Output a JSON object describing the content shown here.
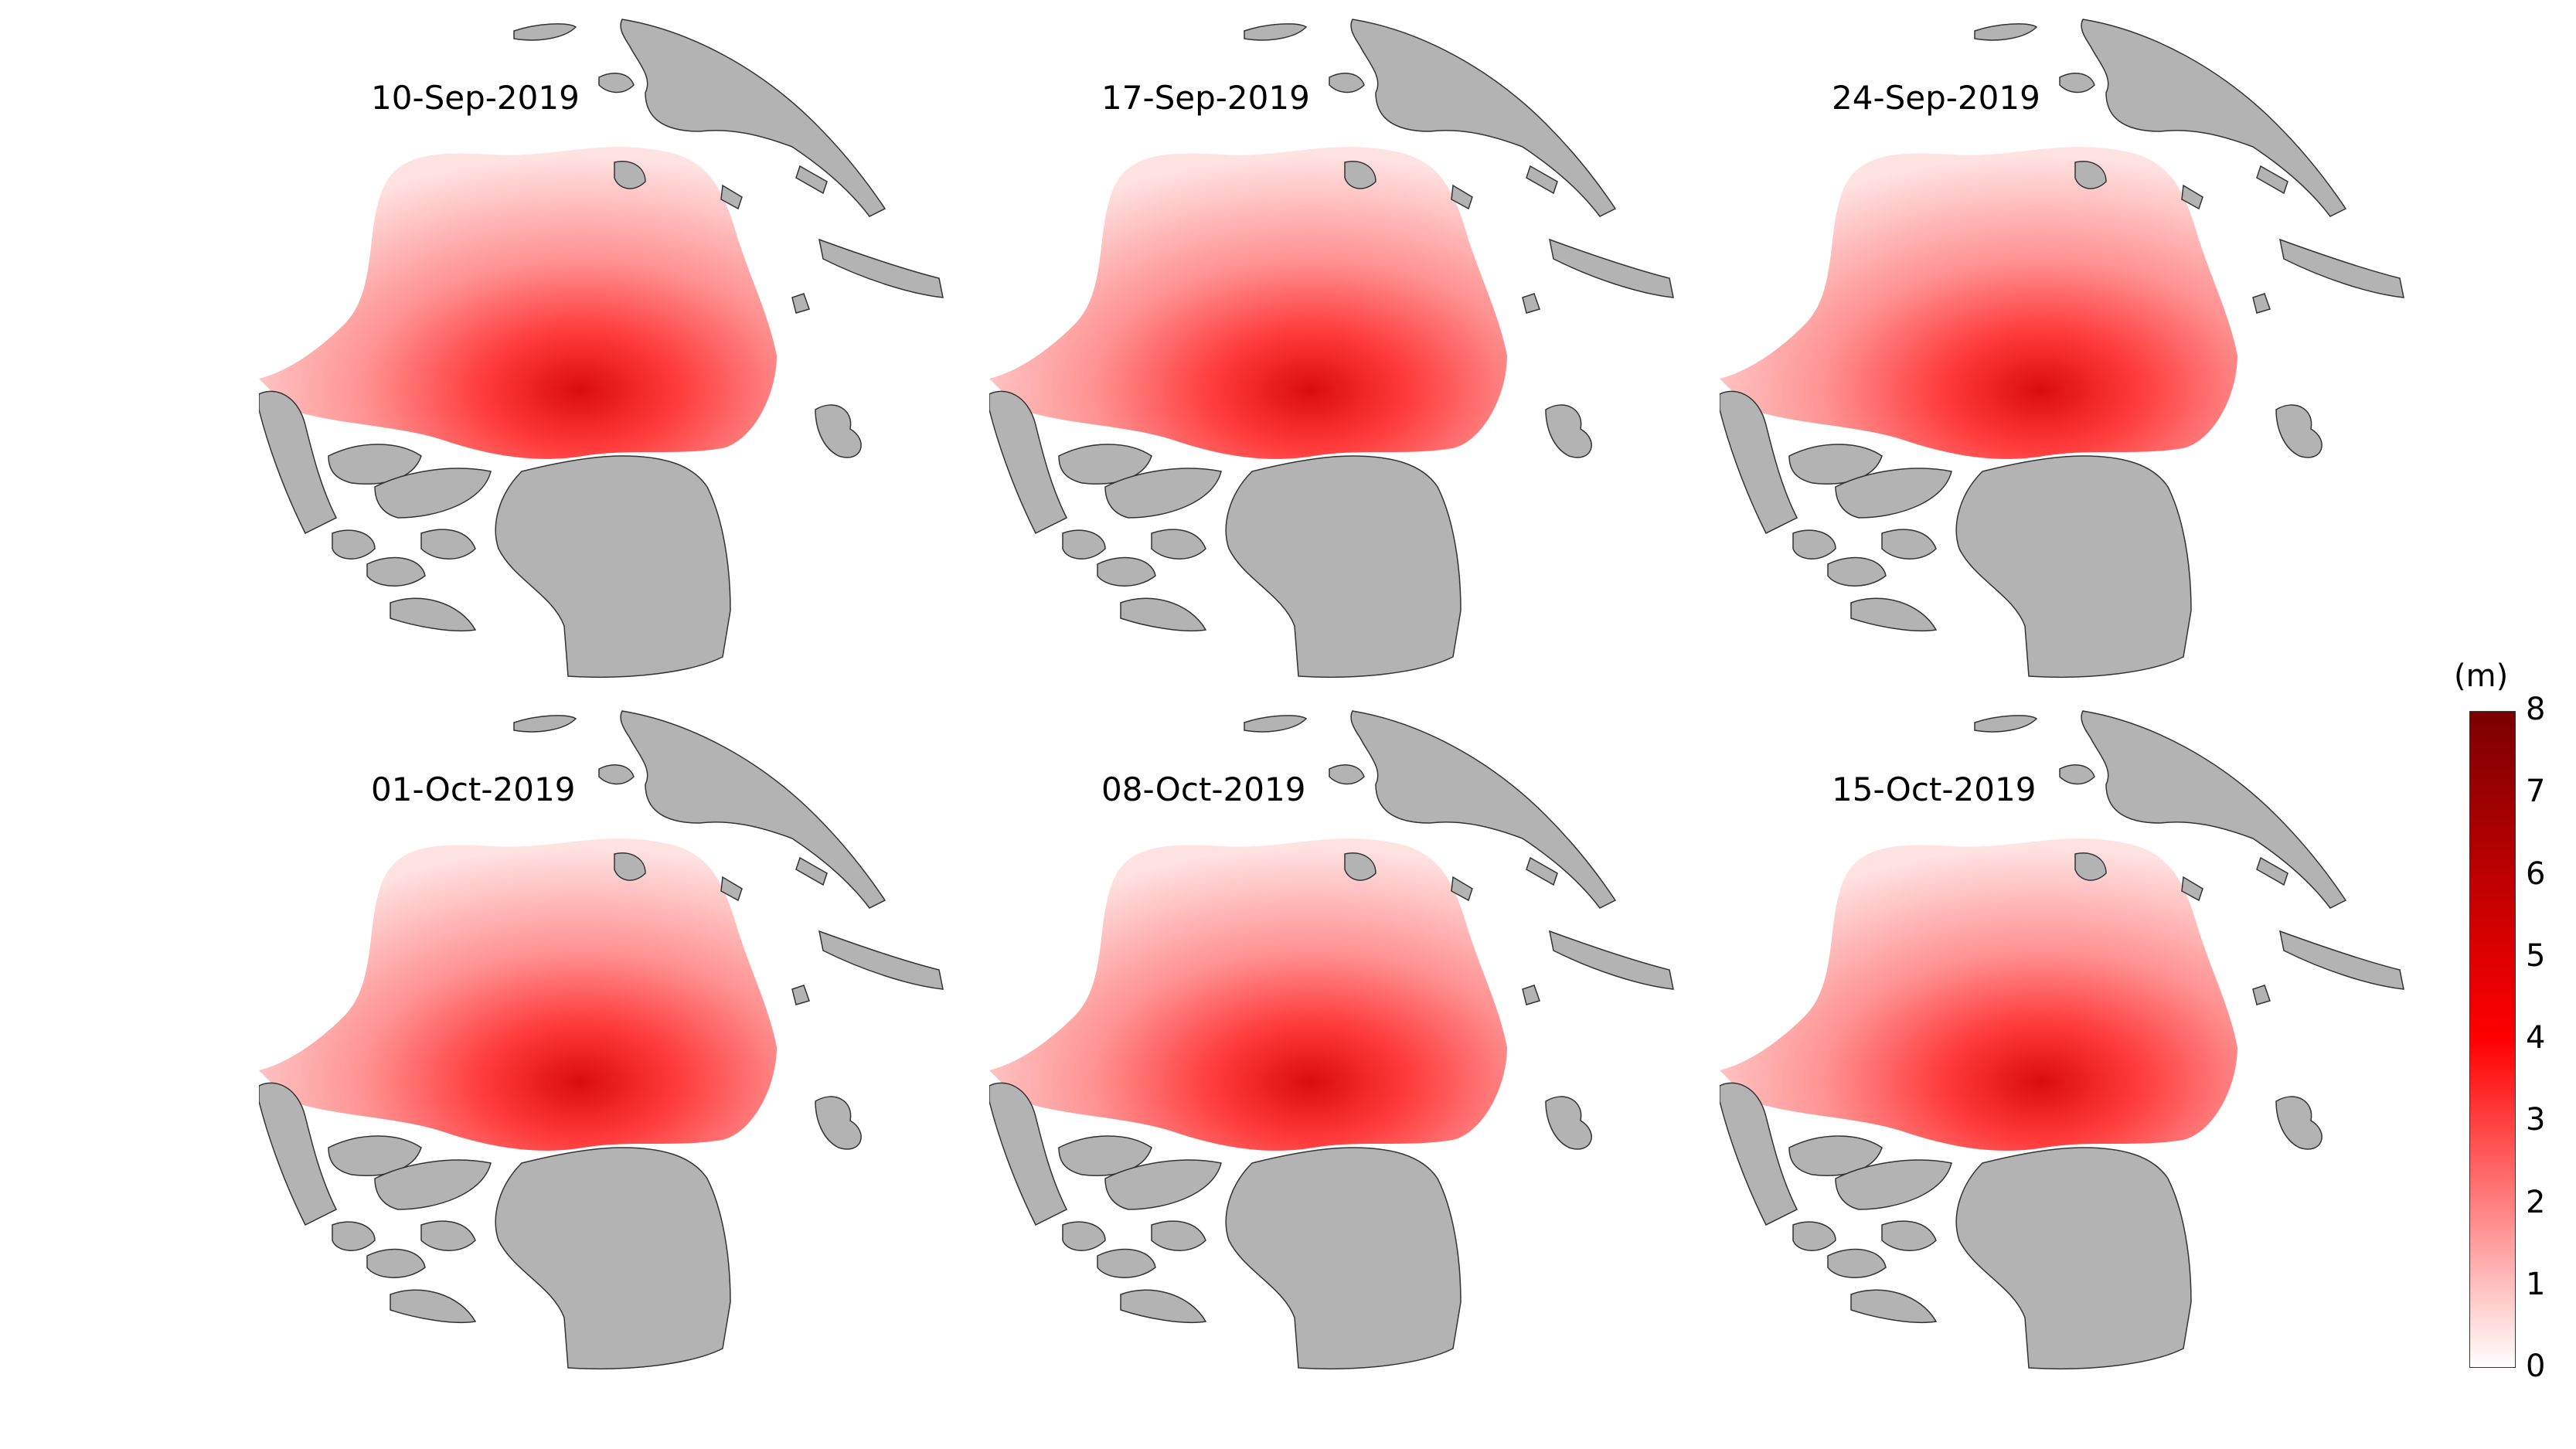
{
  "panels": [
    {
      "date": "10-Sep-2019"
    },
    {
      "date": "17-Sep-2019"
    },
    {
      "date": "24-Sep-2019"
    },
    {
      "date": "01-Oct-2019"
    },
    {
      "date": "08-Oct-2019"
    },
    {
      "date": "15-Oct-2019"
    }
  ],
  "colorbar": {
    "unit": "(m)",
    "min": 0,
    "max": 8,
    "ticks": [
      "0",
      "1",
      "2",
      "3",
      "4",
      "5",
      "6",
      "7",
      "8"
    ],
    "color_low": "#ffffff",
    "color_mid": "#ff0000",
    "color_high": "#7a0000"
  },
  "colors": {
    "land": "#b3b3b3",
    "land_outline": "#333333",
    "ice_light": "#ffc9c9",
    "ice_mid": "#ff6a6a",
    "ice_dark": "#e60000"
  }
}
